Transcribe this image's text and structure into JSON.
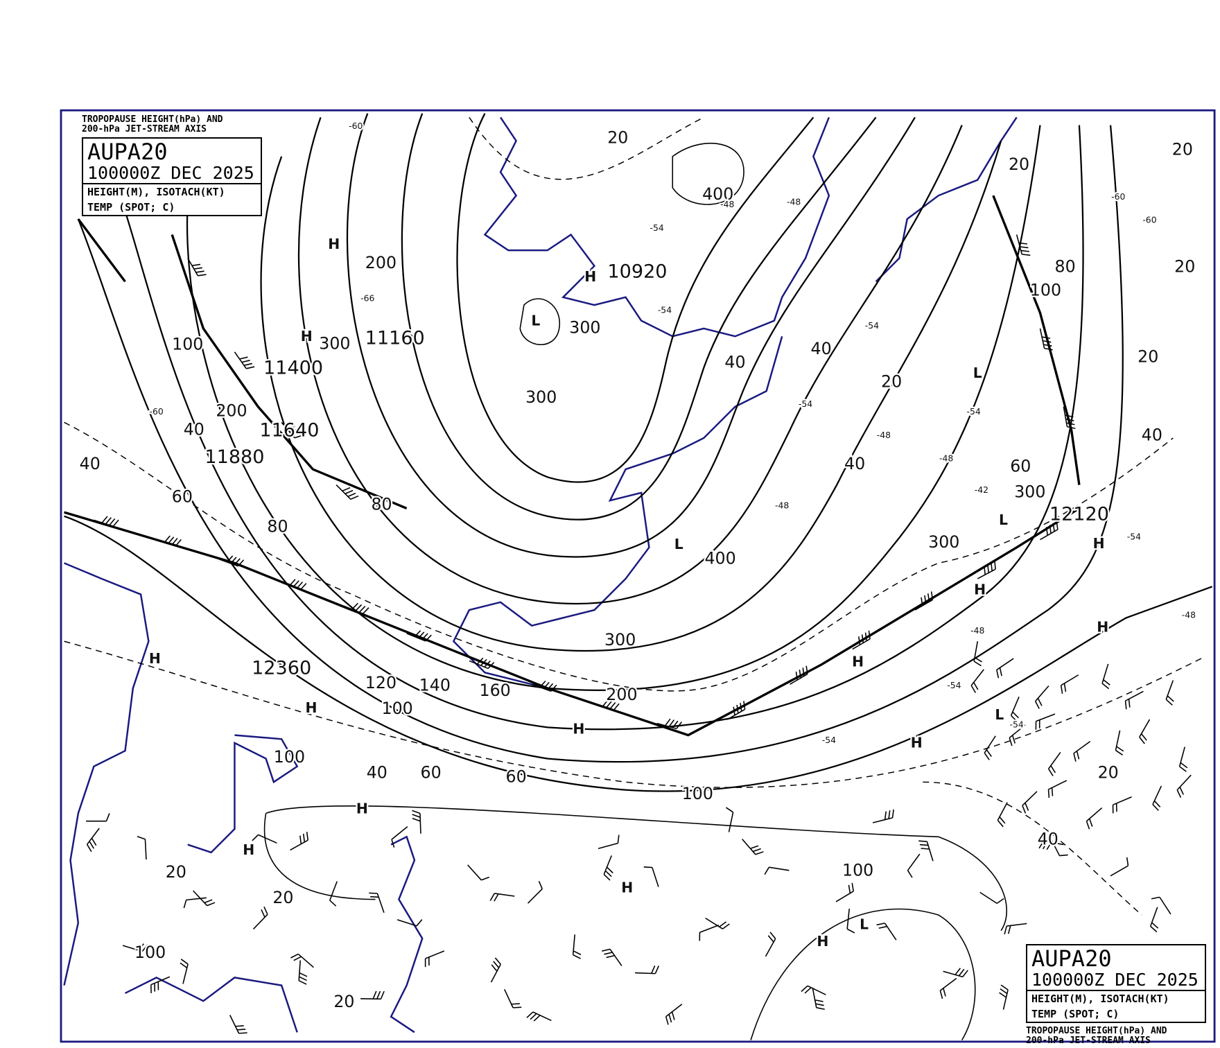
{
  "product": {
    "id": "AUPA20",
    "valid_time": "100000Z DEC 2025",
    "fields_line1": "HEIGHT(M), ISOTACH(KT)",
    "fields_line2": "TEMP (SPOT; C)",
    "caption_line1": "TROPOPAUSE HEIGHT(hPa) AND",
    "caption_line2": "200-hPa JET-STREAM AXIS"
  },
  "colors": {
    "frame": "#1a1a80",
    "coastline": "#1a1a80",
    "contour": "#000000"
  },
  "height_labels": [
    "10920",
    "11160",
    "11400",
    "11640",
    "11880",
    "12120",
    "12360"
  ],
  "isotach_labels": [
    "20",
    "200",
    "100",
    "300",
    "300",
    "300",
    "400",
    "40",
    "40",
    "20",
    "40",
    "60",
    "300",
    "300",
    "400",
    "300",
    "200",
    "120",
    "140",
    "160",
    "100",
    "80",
    "80",
    "60",
    "40",
    "40",
    "200",
    "100",
    "40",
    "60",
    "60",
    "100",
    "100",
    "20",
    "40",
    "20",
    "20",
    "100",
    "20",
    "20",
    "20",
    "80",
    "100",
    "20",
    "20",
    "40"
  ],
  "pressure_centers": [
    "L",
    "L",
    "L",
    "L",
    "L",
    "L",
    "H",
    "H",
    "H",
    "H",
    "H",
    "H",
    "H",
    "H",
    "H",
    "H",
    "H",
    "H",
    "H",
    "H",
    "H"
  ],
  "temperature_labels": [
    "-60",
    "-66",
    "-60",
    "-54",
    "-54",
    "-48",
    "-48",
    "-54",
    "-54",
    "-48",
    "-48",
    "-54",
    "-42",
    "-48",
    "-54",
    "-54",
    "-60",
    "-60",
    "-54",
    "-48",
    "-54",
    "-48"
  ]
}
